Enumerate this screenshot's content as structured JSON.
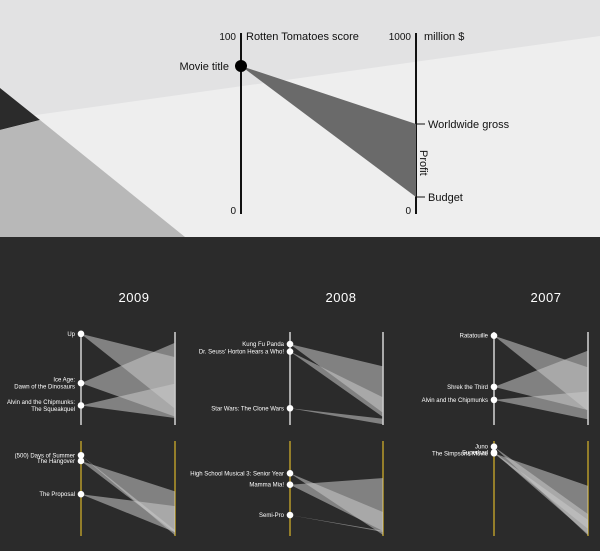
{
  "legend": {
    "left_axis_top": "100",
    "left_axis_title": "Rotten Tomatoes score",
    "left_axis_bottom": "0",
    "right_axis_top": "1000",
    "right_axis_title": "million $",
    "right_axis_bottom": "0",
    "dot_label": "Movie title",
    "gross_label": "Worldwide gross",
    "budget_label": "Budget",
    "profit_label": "Profit"
  },
  "colors": {
    "legend_bg": "#eeeeee",
    "panel_bg": "#2b2b2b",
    "top_group_axis": "#ffffff",
    "bottom_group_axis": "#d9b52a",
    "wedge": "#c9c9c9"
  },
  "chart_data": {
    "type": "parallel-slope",
    "rt_range": [
      0,
      100
    ],
    "money_range": [
      0,
      1000
    ],
    "money_unit": "million $",
    "years": [
      {
        "year": "2009",
        "top": [
          {
            "title": "Up",
            "rt": 98,
            "gross": 730,
            "budget": 175
          },
          {
            "title": "Ice Age:\nDawn of the Dinosaurs",
            "rt": 45,
            "gross": 885,
            "budget": 90
          },
          {
            "title": "Alvin and the Chipmunks:\nThe Squeakquel",
            "rt": 21,
            "gross": 445,
            "budget": 75
          }
        ],
        "bottom": [
          {
            "title": "(500) Days of Summer",
            "rt": 85,
            "gross": 60,
            "budget": 8
          },
          {
            "title": "The Hangover",
            "rt": 79,
            "gross": 470,
            "budget": 35
          },
          {
            "title": "The Proposal",
            "rt": 44,
            "gross": 315,
            "budget": 40
          }
        ]
      },
      {
        "year": "2008",
        "top": [
          {
            "title": "Kung Fu Panda",
            "rt": 87,
            "gross": 630,
            "budget": 130
          },
          {
            "title": "Dr. Seuss' Horton Hears a Who!",
            "rt": 79,
            "gross": 297,
            "budget": 85
          },
          {
            "title": "Star Wars: The Clone Wars",
            "rt": 18,
            "gross": 68,
            "budget": 8
          }
        ],
        "bottom": [
          {
            "title": "High School Musical 3: Senior Year",
            "rt": 66,
            "gross": 252,
            "budget": 11
          },
          {
            "title": "Mamma Mia!",
            "rt": 54,
            "gross": 610,
            "budget": 52
          },
          {
            "title": "Semi-Pro",
            "rt": 22,
            "gross": 43,
            "budget": 55
          }
        ]
      },
      {
        "year": "2007",
        "top": [
          {
            "title": "Ratatouille",
            "rt": 96,
            "gross": 620,
            "budget": 150
          },
          {
            "title": "Shrek the Third",
            "rt": 41,
            "gross": 800,
            "budget": 160
          },
          {
            "title": "Alvin and the Chipmunks",
            "rt": 27,
            "gross": 360,
            "budget": 60
          }
        ],
        "bottom": [
          {
            "title": "Juno",
            "rt": 94,
            "gross": 230,
            "budget": 7
          },
          {
            "title": "Superbad",
            "rt": 88,
            "gross": 170,
            "budget": 20
          },
          {
            "title": "The Simpsons Movie",
            "rt": 87,
            "gross": 527,
            "budget": 75
          }
        ]
      }
    ]
  }
}
